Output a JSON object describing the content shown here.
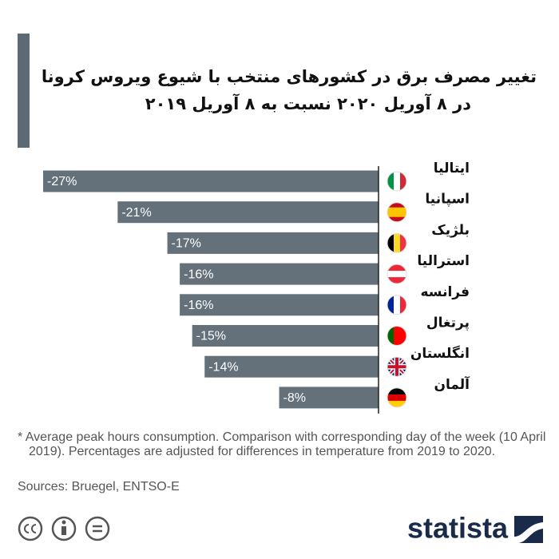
{
  "chart_data": {
    "type": "bar",
    "orientation": "horizontal",
    "title": "تغییر مصرف برق در کشورهای منتخب با شیوع ویروس کرونا",
    "subtitle": "در ۸ آوریل ۲۰۲۰ نسبت به ۸ آوریل ۲۰۱۹",
    "categories": [
      "ایتالیا",
      "اسپانیا",
      "بلژیک",
      "استرالیا",
      "فرانسه",
      "پرتغال",
      "انگلستان",
      "آلمان"
    ],
    "values": [
      -27,
      -21,
      -17,
      -16,
      -16,
      -15,
      -14,
      -8
    ],
    "value_labels": [
      "-27%",
      "-21%",
      "-17%",
      "-16%",
      "-16%",
      "-15%",
      "-14%",
      "-8%"
    ],
    "color": "#64717b",
    "xlim": [
      -27,
      0
    ],
    "note": "* Average peak hours consumption. Comparison with corresponding day of the week (10 April 2019). Percentages are adjusted for differences in temperature from 2019 to 2020.",
    "source": "Sources: Bruegel, ENTSO-E",
    "brand": "statista"
  }
}
